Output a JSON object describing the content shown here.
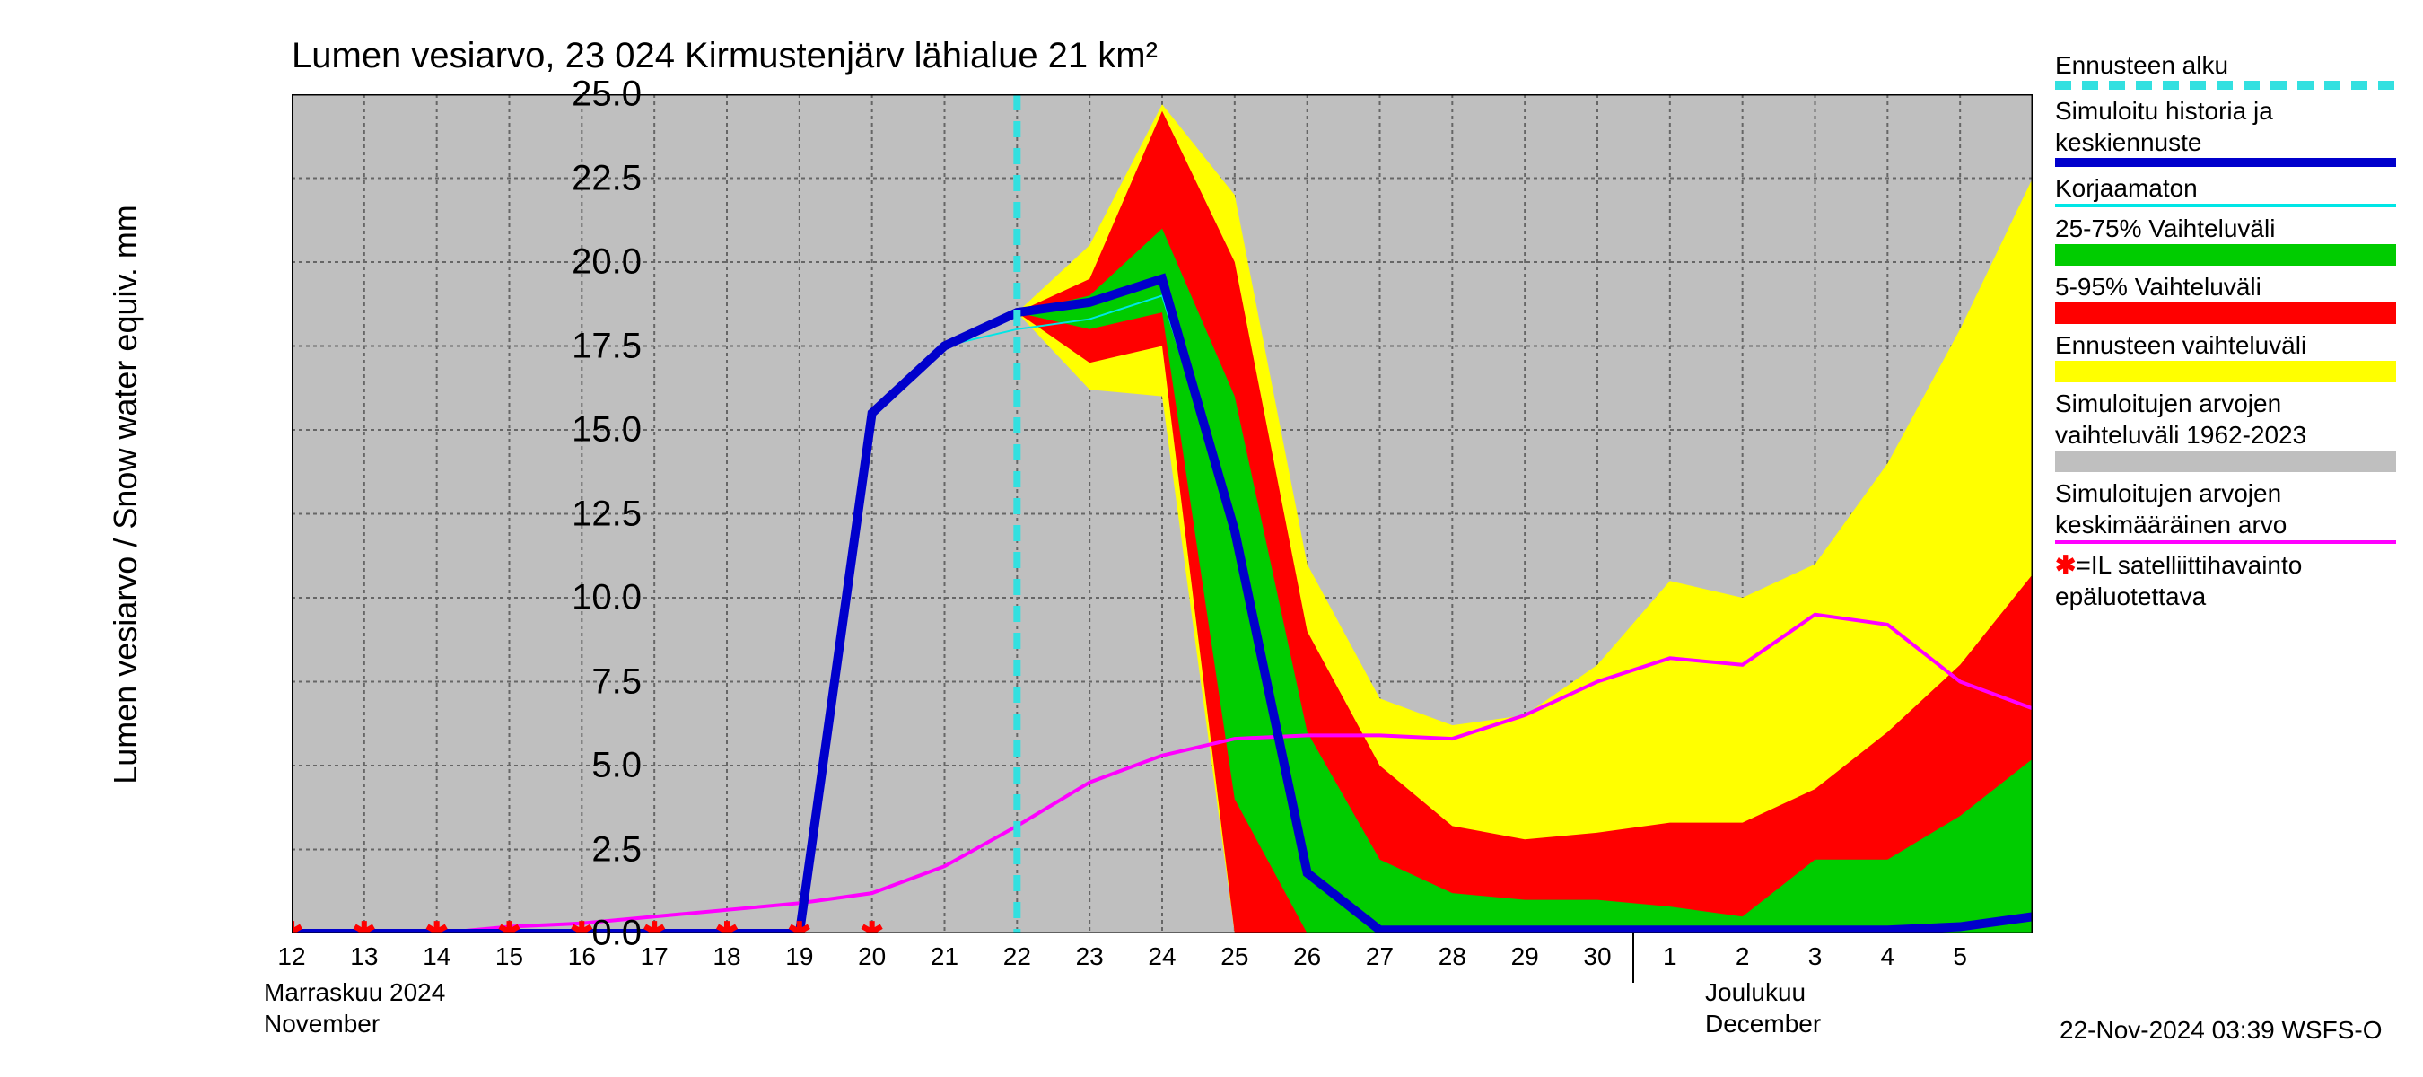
{
  "title": "Lumen vesiarvo, 23 024 Kirmustenjärv lähialue 21 km²",
  "ylabel": "Lumen vesiarvo / Snow water equiv.    mm",
  "stamp": "22-Nov-2024 03:39 WSFS-O",
  "chart": {
    "type": "line-band",
    "xlim": [
      0,
      24
    ],
    "ylim": [
      0,
      25
    ],
    "ytick_step": 2.5,
    "yticks": [
      "0.0",
      "2.5",
      "5.0",
      "7.5",
      "10.0",
      "12.5",
      "15.0",
      "17.5",
      "20.0",
      "22.5",
      "25.0"
    ],
    "xticks": [
      "12",
      "13",
      "14",
      "15",
      "16",
      "17",
      "18",
      "19",
      "20",
      "21",
      "22",
      "23",
      "24",
      "25",
      "26",
      "27",
      "28",
      "29",
      "30",
      "1",
      "2",
      "3",
      "4",
      "5"
    ],
    "month1_fi": "Marraskuu 2024",
    "month1_en": "November",
    "month2_fi": "Joulukuu",
    "month2_en": "December",
    "background_color": "#bfbfbf",
    "grid_color": "#666666",
    "colors": {
      "sim_hist": "#0000cc",
      "uncorrected": "#00e6e6",
      "p25_75": "#00cc00",
      "p5_95": "#ff0000",
      "full_range": "#ffff00",
      "hist_mean": "#ff00ff",
      "forecast_start": "#33e0e0",
      "marker": "#ff0000"
    },
    "forecast_start_x": 10.0,
    "x_values": [
      0,
      1,
      2,
      3,
      4,
      5,
      6,
      7,
      8,
      9,
      10,
      11,
      12,
      13,
      14,
      15,
      16,
      17,
      18,
      19,
      20,
      21,
      22,
      23,
      24
    ],
    "full_range_hi": [
      0,
      0,
      0,
      0,
      0,
      0,
      0,
      0,
      15.5,
      17.5,
      18.5,
      20.5,
      24.7,
      22.0,
      11.0,
      7.0,
      6.2,
      6.5,
      8.0,
      10.5,
      10.0,
      11.0,
      14.0,
      18.0,
      22.5
    ],
    "full_range_lo": [
      0,
      0,
      0,
      0,
      0,
      0,
      0,
      0,
      15.5,
      17.5,
      18.5,
      16.2,
      16.0,
      0.0,
      0.0,
      0.0,
      0.0,
      0.0,
      0.0,
      0.0,
      0.0,
      0.0,
      0.0,
      0.0,
      0.0
    ],
    "p5_95_hi": [
      0,
      0,
      0,
      0,
      0,
      0,
      0,
      0,
      15.5,
      17.5,
      18.5,
      19.5,
      24.5,
      20.0,
      9.0,
      5.0,
      3.2,
      2.8,
      3.0,
      3.3,
      3.3,
      4.3,
      6.0,
      8.0,
      10.7
    ],
    "p5_95_lo": [
      0,
      0,
      0,
      0,
      0,
      0,
      0,
      0,
      15.5,
      17.5,
      18.5,
      17.0,
      17.5,
      0.0,
      0.0,
      0.0,
      0.0,
      0.0,
      0.0,
      0.0,
      0.0,
      0.0,
      0.0,
      0.0,
      0.0
    ],
    "p25_75_hi": [
      0,
      0,
      0,
      0,
      0,
      0,
      0,
      0,
      15.5,
      17.5,
      18.5,
      19.0,
      21.0,
      16.0,
      6.0,
      2.2,
      1.2,
      1.0,
      1.0,
      0.8,
      0.5,
      2.2,
      2.2,
      3.5,
      5.2
    ],
    "p25_75_lo": [
      0,
      0,
      0,
      0,
      0,
      0,
      0,
      0,
      15.5,
      17.5,
      18.5,
      18.0,
      18.5,
      4.0,
      0.0,
      0.0,
      0.0,
      0.0,
      0.0,
      0.0,
      0.0,
      0.0,
      0.0,
      0.0,
      0.0
    ],
    "sim_hist": [
      0,
      0,
      0,
      0,
      0,
      0,
      0,
      0,
      15.5,
      17.5,
      18.5,
      18.8,
      19.5,
      12.0,
      1.8,
      0.1,
      0.1,
      0.1,
      0.1,
      0.1,
      0.1,
      0.1,
      0.1,
      0.2,
      0.5
    ],
    "uncorrected": [
      0,
      0,
      0,
      0,
      0,
      0,
      0,
      0,
      15.5,
      17.5,
      18.0,
      18.3,
      19.0,
      12.0,
      1.8,
      0.1,
      0.1,
      0.1,
      0.1,
      0.1,
      0.1,
      0.1,
      0.1,
      0.2,
      0.4
    ],
    "hist_mean": [
      0,
      0,
      0,
      0.2,
      0.3,
      0.5,
      0.7,
      0.9,
      1.2,
      2.0,
      3.2,
      4.5,
      5.3,
      5.8,
      5.9,
      5.9,
      5.8,
      6.5,
      7.5,
      8.2,
      8.0,
      9.5,
      9.2,
      7.5,
      6.7
    ],
    "markers_x": [
      0.0,
      1.0,
      2.0,
      3.0,
      4.0,
      5.0,
      6.0,
      7.0,
      8.0
    ],
    "historical_band_hi": [
      25,
      25,
      25,
      25,
      25,
      25,
      25,
      25,
      25,
      25,
      25,
      25,
      25,
      25,
      25,
      25,
      25,
      25,
      25,
      25,
      25,
      25,
      25,
      25,
      25
    ],
    "historical_band_lo": [
      0,
      0,
      0,
      0,
      0,
      0,
      0,
      0,
      0,
      0,
      0,
      0,
      0,
      0,
      0,
      0,
      0,
      0,
      0,
      0,
      0,
      0,
      0,
      0,
      0
    ],
    "line_widths": {
      "sim_hist": 10,
      "uncorrected": 2,
      "hist_mean": 4,
      "forecast_start": 8
    }
  },
  "legend": [
    {
      "label": "Ennusteen alku",
      "type": "dash",
      "color": "#33e0e0"
    },
    {
      "label": "Simuloitu historia ja keskiennuste",
      "type": "line",
      "color": "#0000cc"
    },
    {
      "label": "Korjaamaton",
      "type": "line-thin",
      "color": "#00e6e6"
    },
    {
      "label": "25-75% Vaihteluväli",
      "type": "block",
      "color": "#00cc00"
    },
    {
      "label": "5-95% Vaihteluväli",
      "type": "block",
      "color": "#ff0000"
    },
    {
      "label": "Ennusteen vaihteluväli",
      "type": "block",
      "color": "#ffff00"
    },
    {
      "label": "Simuloitujen arvojen vaihteluväli 1962-2023",
      "type": "block",
      "color": "#bfbfbf"
    },
    {
      "label": "Simuloitujen arvojen keskimääräinen arvo",
      "type": "line-thin",
      "color": "#ff00ff"
    },
    {
      "label": "=IL satelliittihavainto epäluotettava",
      "type": "marker",
      "color": "#ff0000",
      "prefix": "✱"
    }
  ]
}
